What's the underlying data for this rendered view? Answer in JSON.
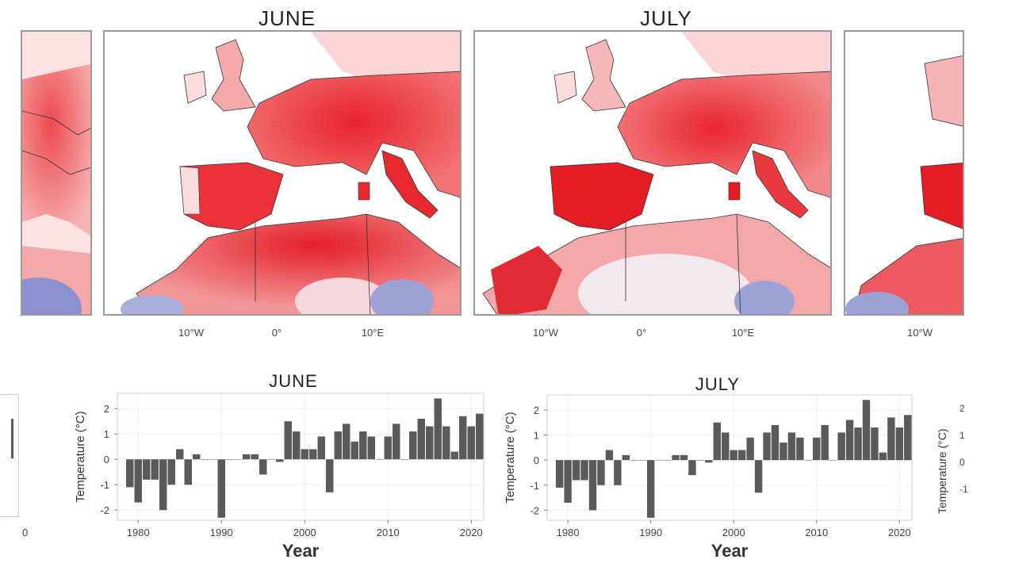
{
  "maps": {
    "months": [
      "JUNE",
      "JULY"
    ],
    "lon_labels": [
      "10°W",
      "0°",
      "10°E"
    ],
    "partial_lon_label": "10°W",
    "colors": {
      "warm": "#e8202a",
      "light": "#f8c9c9",
      "cool": "#7c82c8",
      "border": "#9a9a9a"
    }
  },
  "chart_data": [
    {
      "type": "bar",
      "title": "JUNE",
      "xlabel": "Year",
      "ylabel": "Temperature (°C)",
      "ylim": [
        -2.4,
        2.6
      ],
      "xlim": [
        1977.5,
        2021.5
      ],
      "yticks": [
        -2,
        -1,
        0,
        1,
        2
      ],
      "xticks": [
        1980,
        1990,
        2000,
        2010,
        2020
      ],
      "grid": true,
      "bar_color": "#5a5a5a",
      "x": [
        1979,
        1980,
        1981,
        1982,
        1983,
        1984,
        1985,
        1986,
        1987,
        1988,
        1989,
        1990,
        1991,
        1992,
        1993,
        1994,
        1995,
        1996,
        1997,
        1998,
        1999,
        2000,
        2001,
        2002,
        2003,
        2004,
        2005,
        2006,
        2007,
        2008,
        2009,
        2010,
        2011,
        2012,
        2013,
        2014,
        2015,
        2016,
        2017,
        2018,
        2019,
        2020,
        2021
      ],
      "values": [
        -1.1,
        -1.7,
        -0.8,
        -0.8,
        -2.0,
        -1.0,
        0.4,
        -1.0,
        0.2,
        0.0,
        0.0,
        -2.3,
        0.0,
        0.0,
        0.2,
        0.2,
        -0.6,
        0.0,
        -0.1,
        1.5,
        1.1,
        0.4,
        0.4,
        0.9,
        -1.3,
        1.1,
        1.4,
        0.7,
        1.1,
        0.9,
        0.0,
        0.9,
        1.4,
        0.0,
        1.1,
        1.6,
        1.3,
        2.4,
        1.3,
        0.3,
        1.7,
        1.3,
        1.8
      ]
    },
    {
      "type": "bar",
      "title": "JULY",
      "xlabel": "Year",
      "ylabel": "Temperature (°C)",
      "ylim": [
        -2.4,
        2.6
      ],
      "xlim": [
        1977.5,
        2021.5
      ],
      "yticks": [
        -2,
        -1,
        0,
        1,
        2
      ],
      "xticks": [
        1980,
        1990,
        2000,
        2010,
        2020
      ],
      "grid": true,
      "bar_color": "#5a5a5a",
      "x": [
        1979,
        1980,
        1981,
        1982,
        1983,
        1984,
        1985,
        1986,
        1987,
        1988,
        1989,
        1990,
        1991,
        1992,
        1993,
        1994,
        1995,
        1996,
        1997,
        1998,
        1999,
        2000,
        2001,
        2002,
        2003,
        2004,
        2005,
        2006,
        2007,
        2008,
        2009,
        2010,
        2011,
        2012,
        2013,
        2014,
        2015,
        2016,
        2017,
        2018,
        2019,
        2020,
        2021
      ],
      "values": [
        -1.1,
        -1.7,
        -0.8,
        -0.8,
        -2.0,
        -1.0,
        0.4,
        -1.0,
        0.2,
        0.0,
        0.0,
        -2.3,
        0.0,
        0.0,
        0.2,
        0.2,
        -0.6,
        0.0,
        -0.1,
        1.5,
        1.1,
        0.4,
        0.4,
        0.9,
        -1.3,
        1.1,
        1.4,
        0.7,
        1.1,
        0.9,
        0.0,
        0.9,
        1.4,
        0.0,
        1.1,
        1.6,
        1.3,
        2.4,
        1.3,
        0.3,
        1.7,
        1.3,
        1.8
      ]
    }
  ],
  "partial_charts": {
    "left_xtick": "0",
    "right_ylabel": "Temperature (°C)",
    "right_yticks": [
      "2",
      "1",
      "0",
      "-1"
    ]
  }
}
